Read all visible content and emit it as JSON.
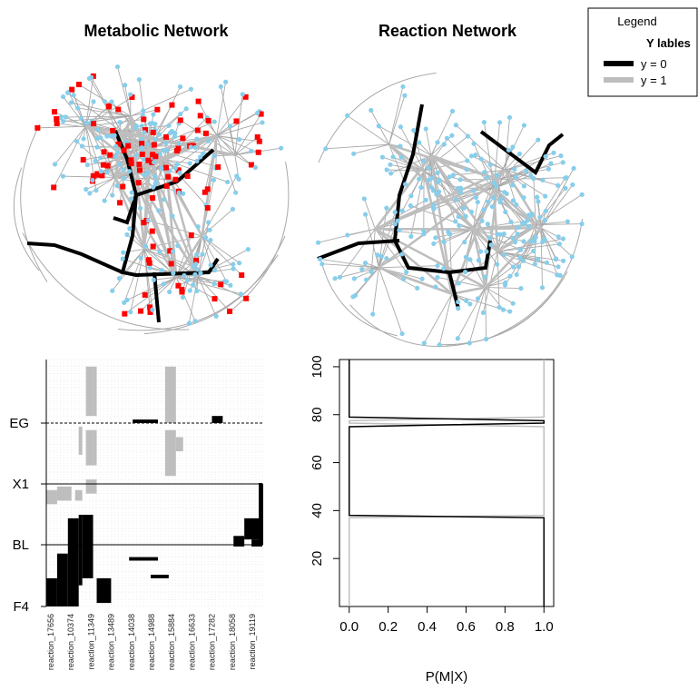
{
  "colors": {
    "metabolite": "#87ceeb",
    "reaction_node": "#ff0000",
    "edge": "#a9a9a9",
    "path_y0": "#000000",
    "path_y1": "#bebebe",
    "heat_light": "#bebebe",
    "heat_dark": "#000000"
  },
  "legend": {
    "title": "Legend",
    "subtitle": "Y lables",
    "items": [
      {
        "label": "y = 0",
        "color": "#000000"
      },
      {
        "label": "y = 1",
        "color": "#bebebe"
      }
    ]
  },
  "chart_data": [
    {
      "type": "network",
      "title": "Metabolic Network",
      "node_types": [
        "metabolite",
        "reaction"
      ]
    },
    {
      "type": "network",
      "title": "Reaction Network",
      "node_types": [
        "reaction"
      ]
    },
    {
      "type": "heatmap",
      "title": "",
      "row_labels": [
        "EG",
        "X1",
        "BL",
        "F4"
      ],
      "column_labels": [
        "reaction_17656",
        "reaction_10374",
        "reaction_11349",
        "reaction_13489",
        "reaction_14038",
        "reaction_14988",
        "reaction_15884",
        "reaction_16633",
        "reaction_17282",
        "reaction_18058",
        "reaction_19119"
      ],
      "level_colors": [
        "#bebebe",
        "#000000"
      ]
    },
    {
      "type": "line",
      "title": "",
      "xlabel": "P(M|X)",
      "ylabel": "",
      "xlim": [
        0,
        1
      ],
      "ylim": [
        0,
        103
      ],
      "xticks": [
        "0.0",
        "0.2",
        "0.4",
        "0.6",
        "0.8",
        "1.0"
      ],
      "yticks": [
        "20",
        "40",
        "60",
        "80",
        "100"
      ],
      "series": [
        {
          "color": "#000000",
          "points": [
            [
              0,
              103
            ],
            [
              0,
              79
            ],
            [
              1,
              77.5
            ],
            [
              1,
              76.5
            ],
            [
              0,
              75
            ],
            [
              0,
              38
            ],
            [
              1,
              37
            ],
            [
              1,
              0
            ]
          ]
        },
        {
          "color": "#bebebe",
          "points": [
            [
              1,
              103
            ],
            [
              1,
              79
            ],
            [
              0,
              77.5
            ],
            [
              0,
              76.5
            ],
            [
              1,
              75
            ],
            [
              1,
              38
            ],
            [
              0,
              37
            ],
            [
              0,
              0
            ]
          ]
        }
      ]
    }
  ]
}
